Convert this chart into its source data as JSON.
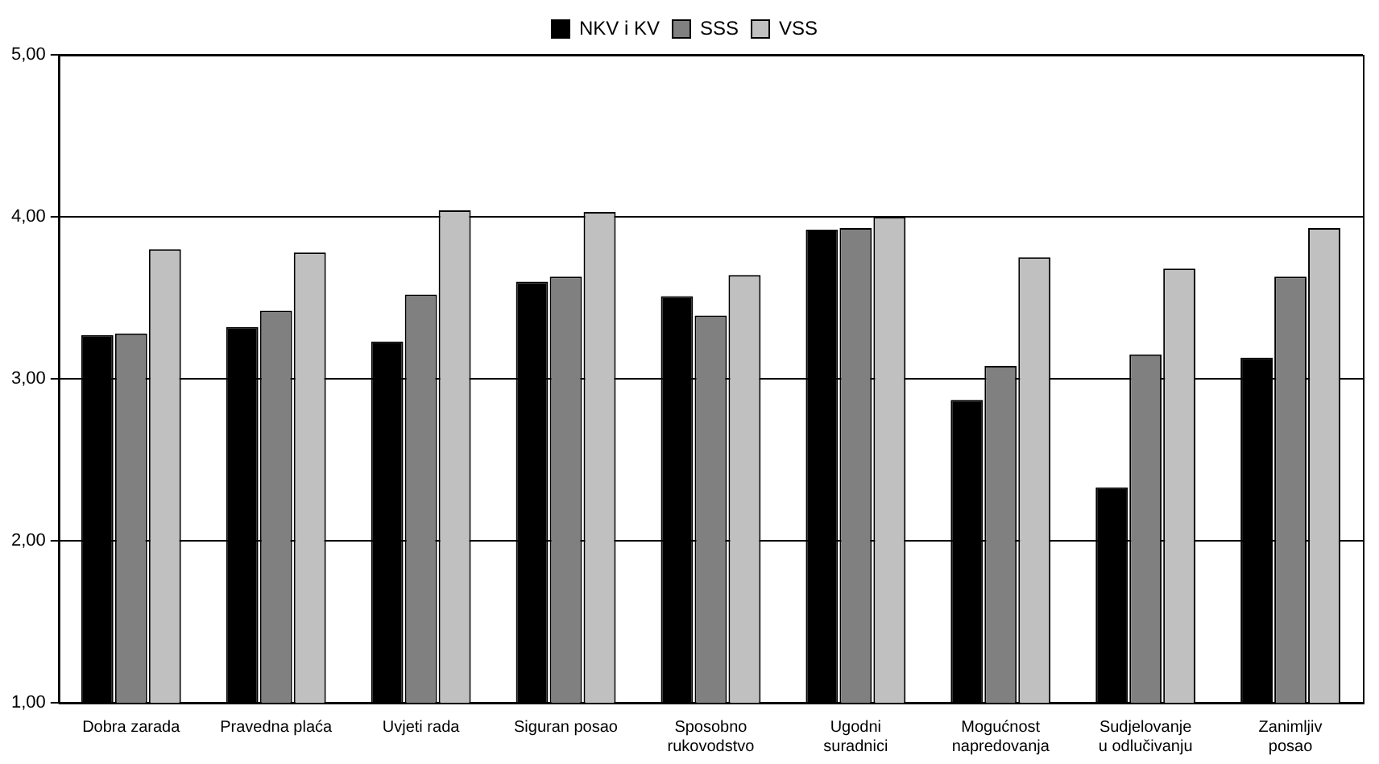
{
  "chart_data": {
    "type": "bar",
    "categories": [
      "Dobra zarada",
      "Pravedna plaća",
      "Uvjeti rada",
      "Siguran posao",
      "Sposobno rukovodstvo",
      "Ugodni suradnici",
      "Mogućnost napredovanja",
      "Sudjelovanje u odlučivanju",
      "Zanimljiv posao"
    ],
    "series": [
      {
        "name": "NKV i KV",
        "color": "#000000",
        "values": [
          3.27,
          3.32,
          3.23,
          3.6,
          3.51,
          3.92,
          2.87,
          2.33,
          3.13
        ]
      },
      {
        "name": "SSS",
        "color": "#808080",
        "values": [
          3.28,
          3.42,
          3.52,
          3.63,
          3.39,
          3.93,
          3.08,
          3.15,
          3.63
        ]
      },
      {
        "name": "VSS",
        "color": "#c0c0c0",
        "values": [
          3.8,
          3.78,
          4.04,
          4.03,
          3.64,
          4.0,
          3.75,
          3.68,
          3.93
        ]
      }
    ],
    "ylim": [
      1,
      5
    ],
    "yticks": [
      {
        "value": 1,
        "label": "1,00"
      },
      {
        "value": 2,
        "label": "2,00"
      },
      {
        "value": 3,
        "label": "3,00"
      },
      {
        "value": 4,
        "label": "4,00"
      },
      {
        "value": 5,
        "label": "5,00"
      }
    ],
    "grid": "y",
    "legend": "top"
  }
}
